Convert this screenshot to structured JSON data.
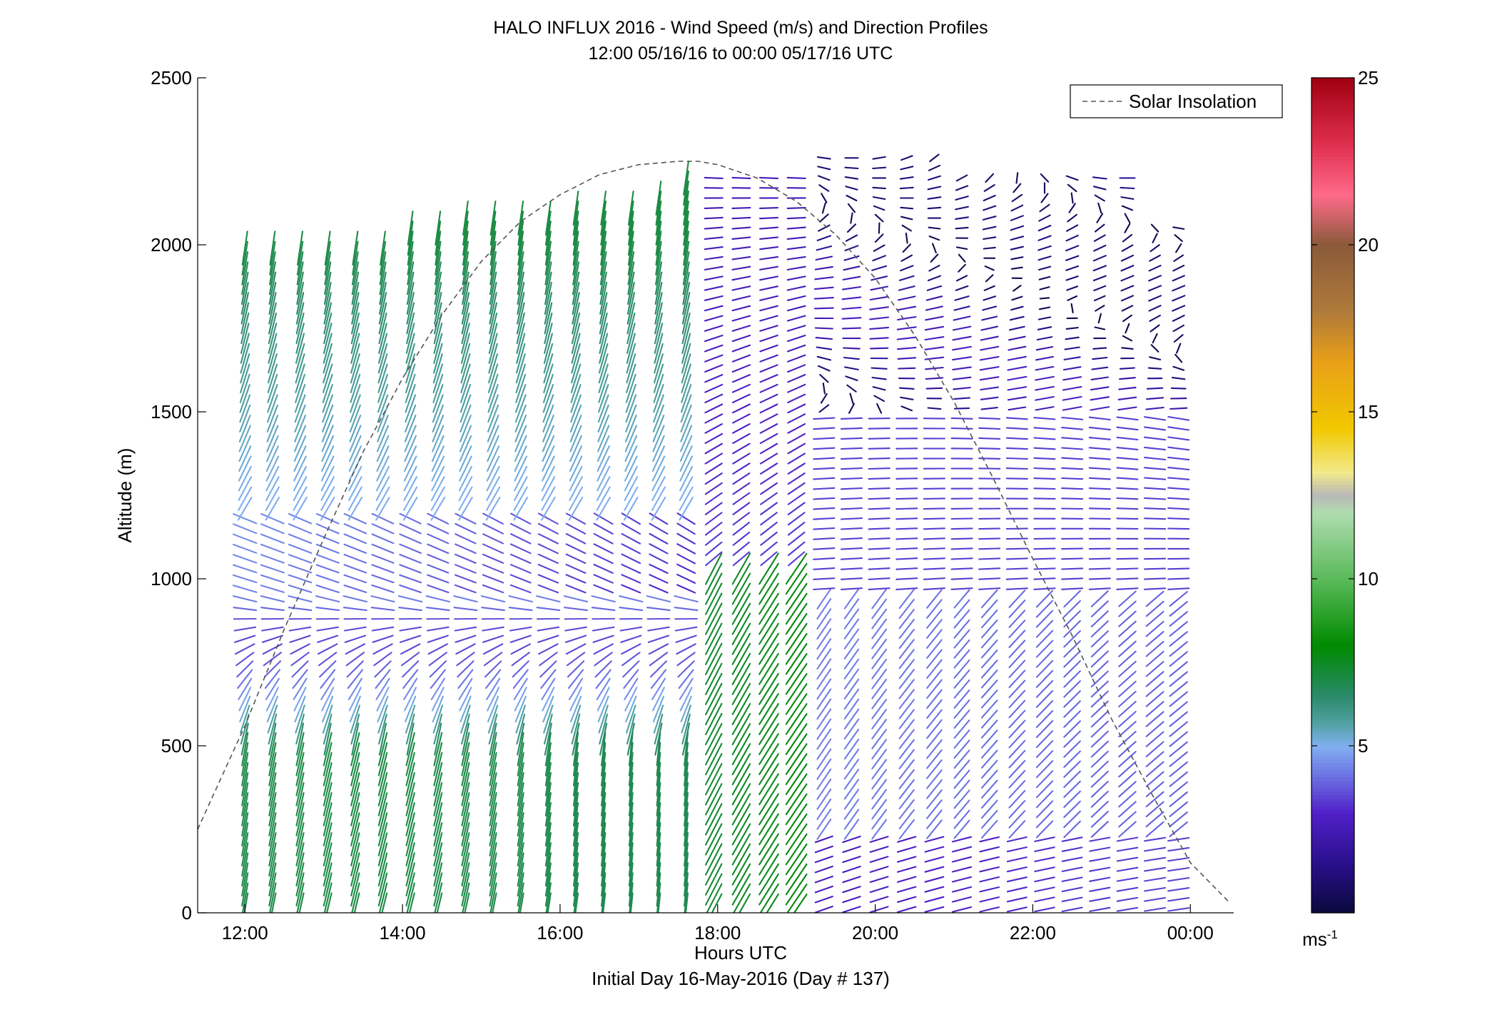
{
  "chart_data": {
    "type": "barb",
    "title": "HALO INFLUX 2016 - Wind Speed (m/s) and Direction Profiles",
    "subtitle": "12:00 05/16/16 to 00:00 05/17/16  UTC",
    "xlabel": "Hours UTC",
    "xlabel2": "Initial Day 16-May-2016 (Day # 137)",
    "ylabel": "Altitude (m)",
    "xlim": [
      11.4,
      24.55
    ],
    "ylim": [
      0,
      2500
    ],
    "x_ticks": [
      12,
      14,
      16,
      18,
      20,
      22,
      24
    ],
    "x_tick_labels": [
      "12:00",
      "14:00",
      "16:00",
      "18:00",
      "20:00",
      "22:00",
      "00:00"
    ],
    "y_ticks": [
      0,
      500,
      1000,
      1500,
      2000,
      2500
    ],
    "y_tick_labels": [
      "0",
      "500",
      "1000",
      "1500",
      "2000",
      "2500"
    ],
    "legend": {
      "label": "Solar Insolation",
      "placement": "top-right",
      "style": "dashed",
      "color": "#555555"
    },
    "solar_insolation": {
      "x": [
        11.4,
        12.0,
        12.5,
        13.0,
        13.5,
        14.0,
        14.5,
        15.0,
        15.5,
        16.0,
        16.5,
        17.0,
        17.5,
        17.75,
        18.0,
        18.5,
        19.0,
        19.5,
        20.0,
        20.5,
        21.0,
        21.5,
        22.0,
        22.5,
        23.0,
        23.5,
        24.0,
        24.5
      ],
      "y": [
        250,
        560,
        850,
        1120,
        1380,
        1600,
        1790,
        1950,
        2070,
        2150,
        2210,
        2240,
        2250,
        2250,
        2240,
        2200,
        2130,
        2030,
        1900,
        1730,
        1530,
        1300,
        1060,
        830,
        580,
        360,
        150,
        30
      ]
    },
    "colorbar": {
      "label": "ms-1",
      "min": 0,
      "max": 25,
      "ticks": [
        5,
        10,
        15,
        20,
        25
      ],
      "tick_labels": [
        "5",
        "10",
        "15",
        "20",
        "25"
      ],
      "stops": [
        {
          "v": 0,
          "c": "#0a0a3c"
        },
        {
          "v": 1.5,
          "c": "#2a0f8c"
        },
        {
          "v": 3,
          "c": "#5020c8"
        },
        {
          "v": 4,
          "c": "#6a6ae0"
        },
        {
          "v": 5,
          "c": "#80b0f0"
        },
        {
          "v": 5.7,
          "c": "#50a0a0"
        },
        {
          "v": 6.5,
          "c": "#2a8a6a"
        },
        {
          "v": 8,
          "c": "#008a00"
        },
        {
          "v": 10,
          "c": "#5aba5a"
        },
        {
          "v": 12,
          "c": "#b0dcb0"
        },
        {
          "v": 12.5,
          "c": "#b8b8b8"
        },
        {
          "v": 13.2,
          "c": "#f2ea8a"
        },
        {
          "v": 14.5,
          "c": "#f2c800"
        },
        {
          "v": 16.5,
          "c": "#e8a018"
        },
        {
          "v": 18,
          "c": "#b07a3a"
        },
        {
          "v": 20,
          "c": "#8a5a3a"
        },
        {
          "v": 21.5,
          "c": "#ff6a8a"
        },
        {
          "v": 23,
          "c": "#e03050"
        },
        {
          "v": 25,
          "c": "#a00010"
        }
      ]
    },
    "series": [
      {
        "name": "wind",
        "times": [
          12.0,
          12.35,
          12.7,
          13.05,
          13.4,
          13.75,
          14.1,
          14.45,
          14.8,
          15.15,
          15.5,
          15.85,
          16.2,
          16.55,
          16.9,
          17.25,
          17.6,
          17.95,
          18.3,
          18.65,
          19.0,
          19.35,
          19.7,
          20.05,
          20.4,
          20.75,
          21.1,
          21.45,
          21.8,
          22.15,
          22.5,
          22.85,
          23.2,
          23.55,
          23.85
        ],
        "altitude_step_m": 30,
        "note_values": "direction/speed fields sampled per time and altitude"
      }
    ]
  }
}
